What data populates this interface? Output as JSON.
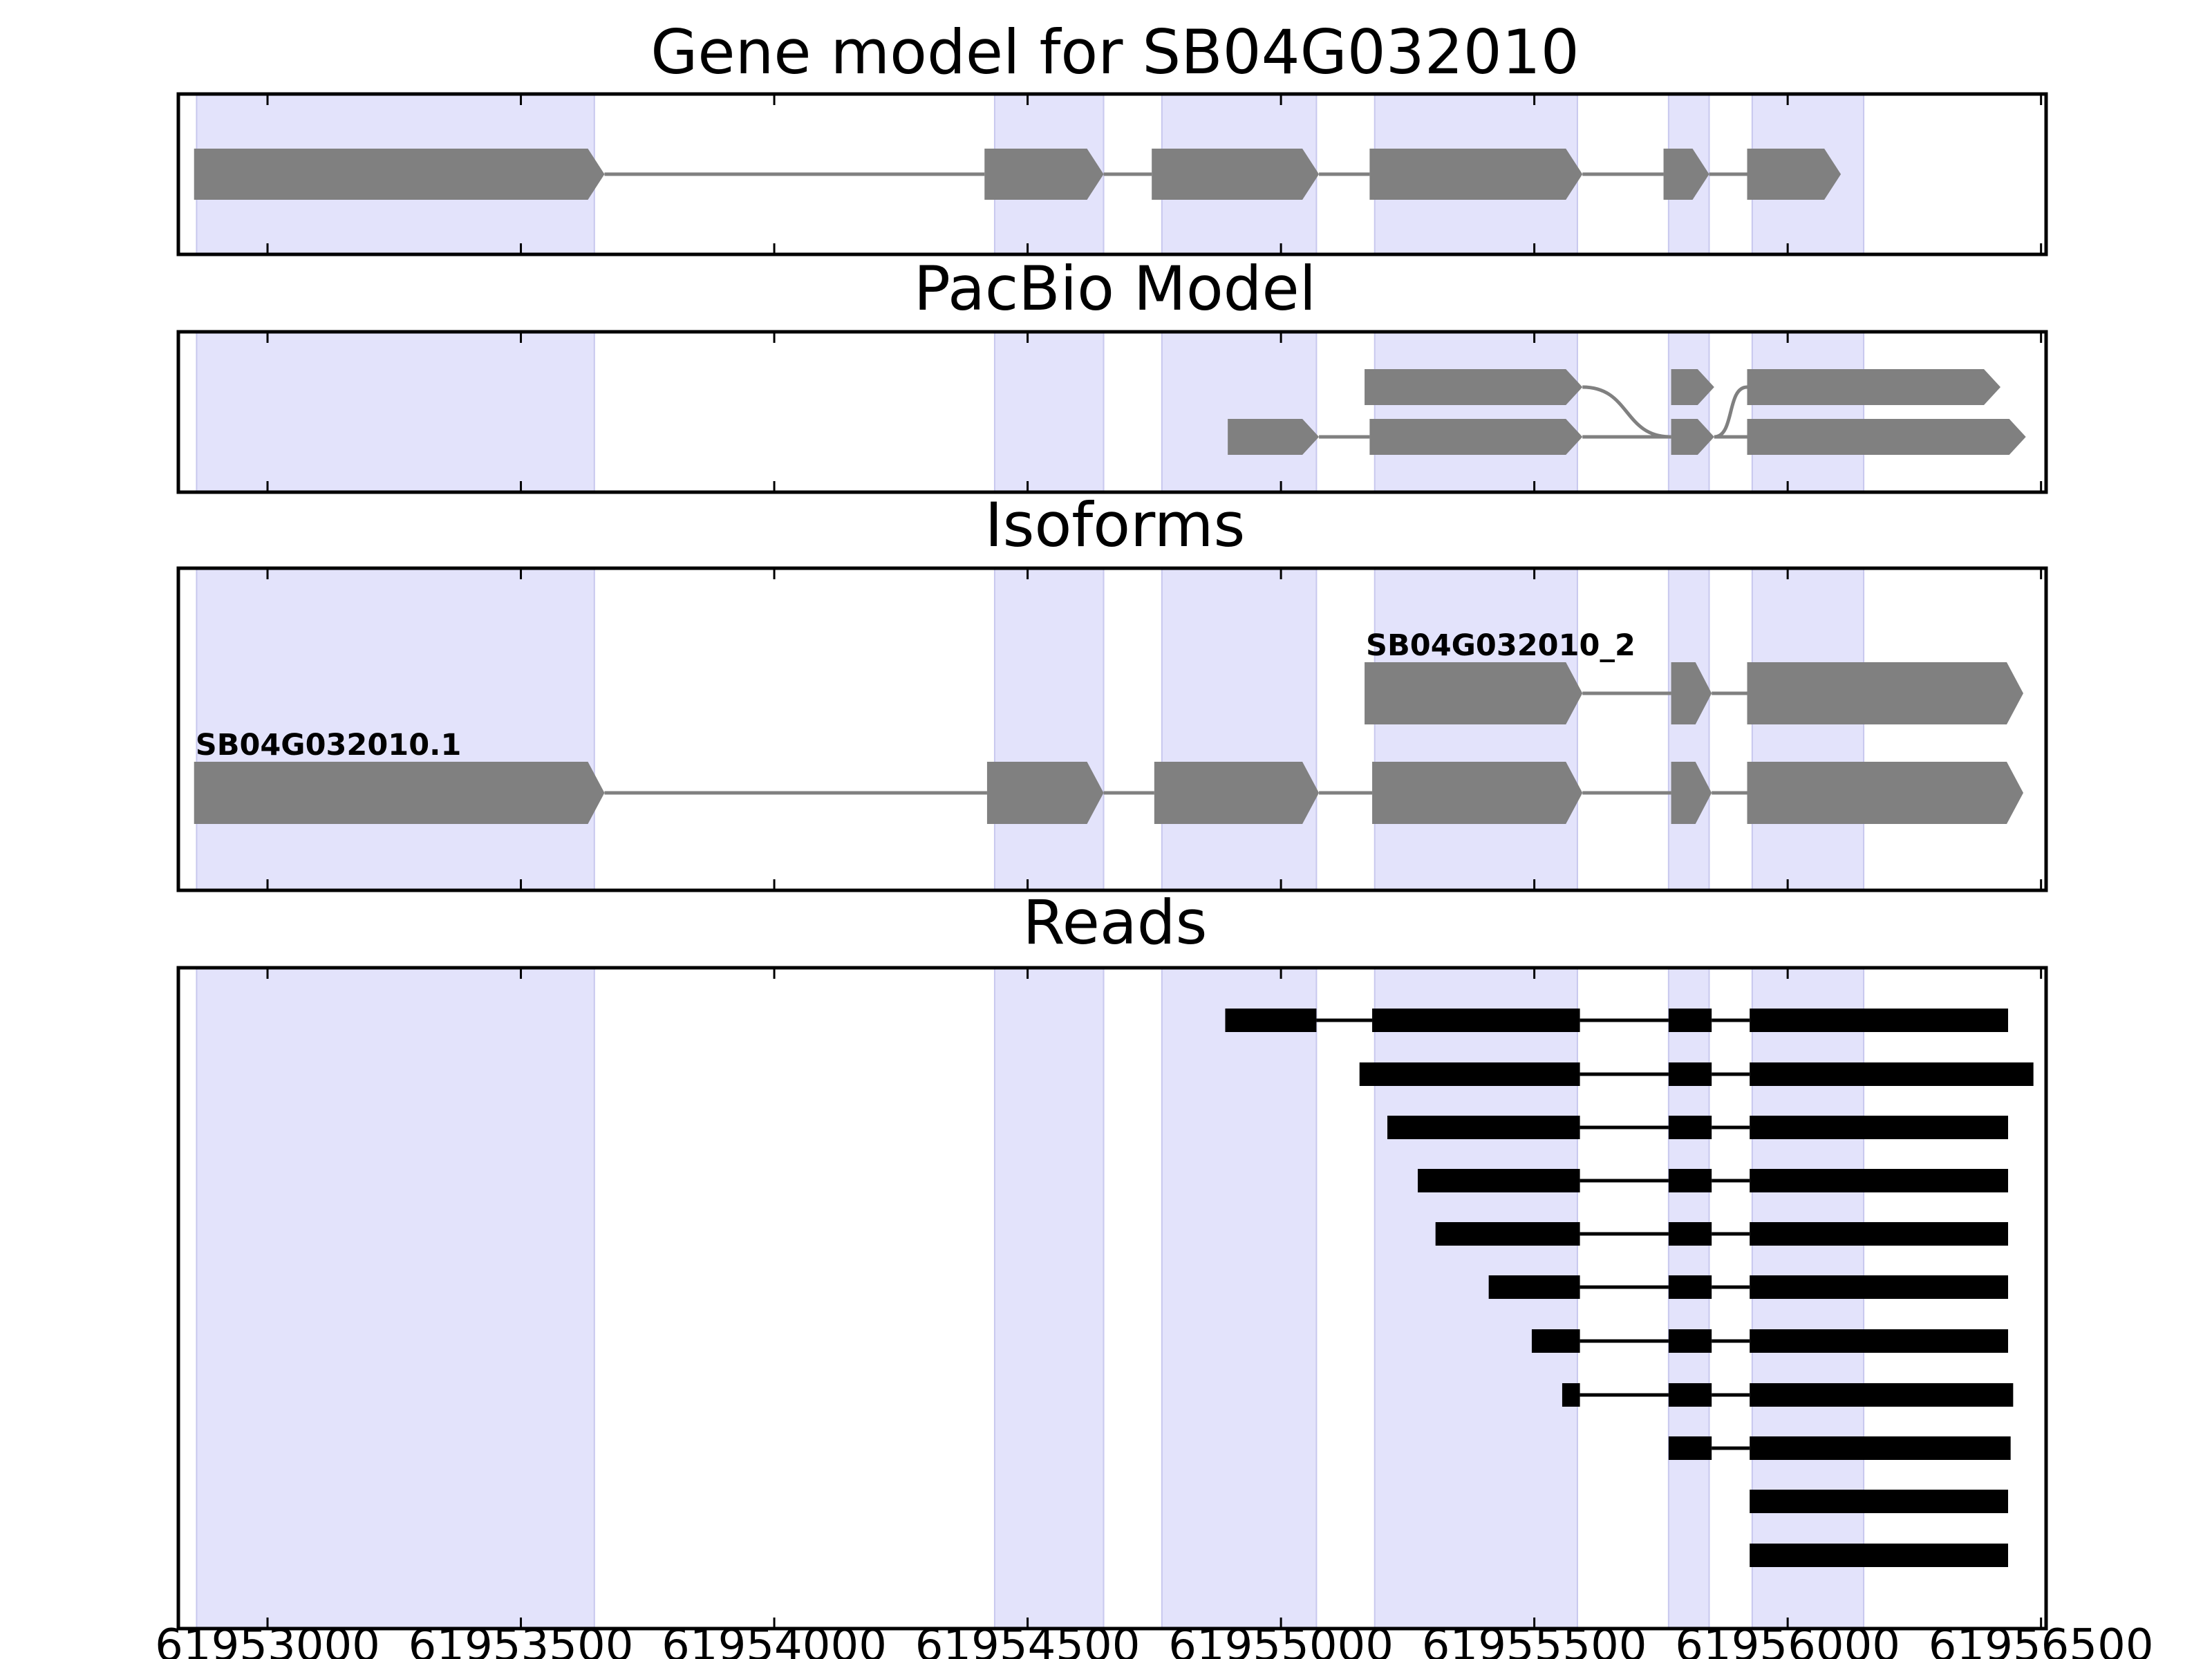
{
  "chart_data": {
    "type": "gene-structure",
    "xlim": [
      61952824,
      61956510
    ],
    "x_ticks": [
      61953000,
      61953500,
      61954000,
      61954500,
      61955000,
      61955500,
      61956000,
      61956500
    ],
    "x_tick_labels": [
      "61953000",
      "61953500",
      "61954000",
      "61954500",
      "61955000",
      "61955500",
      "61956000",
      "61956500"
    ],
    "exon_regions": [
      [
        61952860,
        61953645
      ],
      [
        61954435,
        61954650
      ],
      [
        61954765,
        61955070
      ],
      [
        61955185,
        61955585
      ],
      [
        61955765,
        61955845
      ],
      [
        61955930,
        61956150
      ]
    ],
    "colors": {
      "exon_band": "#e3e3fb",
      "band_edge": "#c8c8ee",
      "feature": "#808080",
      "read": "#000000",
      "frame": "#000000"
    },
    "panels": [
      {
        "id": "gene-model",
        "title": "Gene model for SB04G032010",
        "tracks": [
          {
            "exons": [
              [
                61952855,
                61953665
              ],
              [
                61954415,
                61954650
              ],
              [
                61954745,
                61955075
              ],
              [
                61955175,
                61955595
              ],
              [
                61955755,
                61955845
              ],
              [
                61955920,
                61956105
              ]
            ]
          }
        ]
      },
      {
        "id": "pacbio-model",
        "title": "PacBio Model",
        "tracks": [
          {
            "exons": [
              [
                61955165,
                61955595
              ],
              [
                61955770,
                61955855
              ],
              [
                61955920,
                61956420
              ]
            ],
            "crossing": true
          },
          {
            "exons": [
              [
                61954895,
                61955075
              ],
              [
                61955175,
                61955595
              ],
              [
                61955770,
                61955855
              ],
              [
                61955920,
                61956470
              ]
            ]
          }
        ]
      },
      {
        "id": "isoforms",
        "title": "Isoforms",
        "tracks": [
          {
            "name": "SB04G032010_2",
            "exons": [
              [
                61955165,
                61955595
              ],
              [
                61955770,
                61955850
              ],
              [
                61955920,
                61956465
              ]
            ]
          },
          {
            "name": "SB04G032010.1",
            "exons": [
              [
                61952855,
                61953665
              ],
              [
                61954420,
                61954650
              ],
              [
                61954750,
                61955075
              ],
              [
                61955180,
                61955595
              ],
              [
                61955770,
                61955850
              ],
              [
                61955920,
                61956465
              ]
            ]
          }
        ]
      },
      {
        "id": "reads",
        "title": "Reads",
        "tracks": [
          {
            "exons": [
              [
                61954890,
                61955070
              ],
              [
                61955180,
                61955590
              ],
              [
                61955765,
                61955850
              ],
              [
                61955925,
                61956435
              ]
            ]
          },
          {
            "exons": [
              [
                61955155,
                61955590
              ],
              [
                61955765,
                61955850
              ],
              [
                61955925,
                61956485
              ]
            ]
          },
          {
            "exons": [
              [
                61955210,
                61955590
              ],
              [
                61955765,
                61955850
              ],
              [
                61955925,
                61956435
              ]
            ]
          },
          {
            "exons": [
              [
                61955270,
                61955590
              ],
              [
                61955765,
                61955850
              ],
              [
                61955925,
                61956435
              ]
            ]
          },
          {
            "exons": [
              [
                61955305,
                61955590
              ],
              [
                61955765,
                61955850
              ],
              [
                61955925,
                61956435
              ]
            ]
          },
          {
            "exons": [
              [
                61955410,
                61955590
              ],
              [
                61955765,
                61955850
              ],
              [
                61955925,
                61956435
              ]
            ]
          },
          {
            "exons": [
              [
                61955495,
                61955590
              ],
              [
                61955765,
                61955850
              ],
              [
                61955925,
                61956435
              ]
            ]
          },
          {
            "exons": [
              [
                61955555,
                61955590
              ],
              [
                61955765,
                61955850
              ],
              [
                61955925,
                61956445
              ]
            ]
          },
          {
            "exons": [
              [
                61955765,
                61955850
              ],
              [
                61955925,
                61956440
              ]
            ]
          },
          {
            "exons": [
              [
                61955925,
                61956435
              ]
            ]
          },
          {
            "exons": [
              [
                61955925,
                61956435
              ]
            ]
          }
        ]
      }
    ]
  }
}
